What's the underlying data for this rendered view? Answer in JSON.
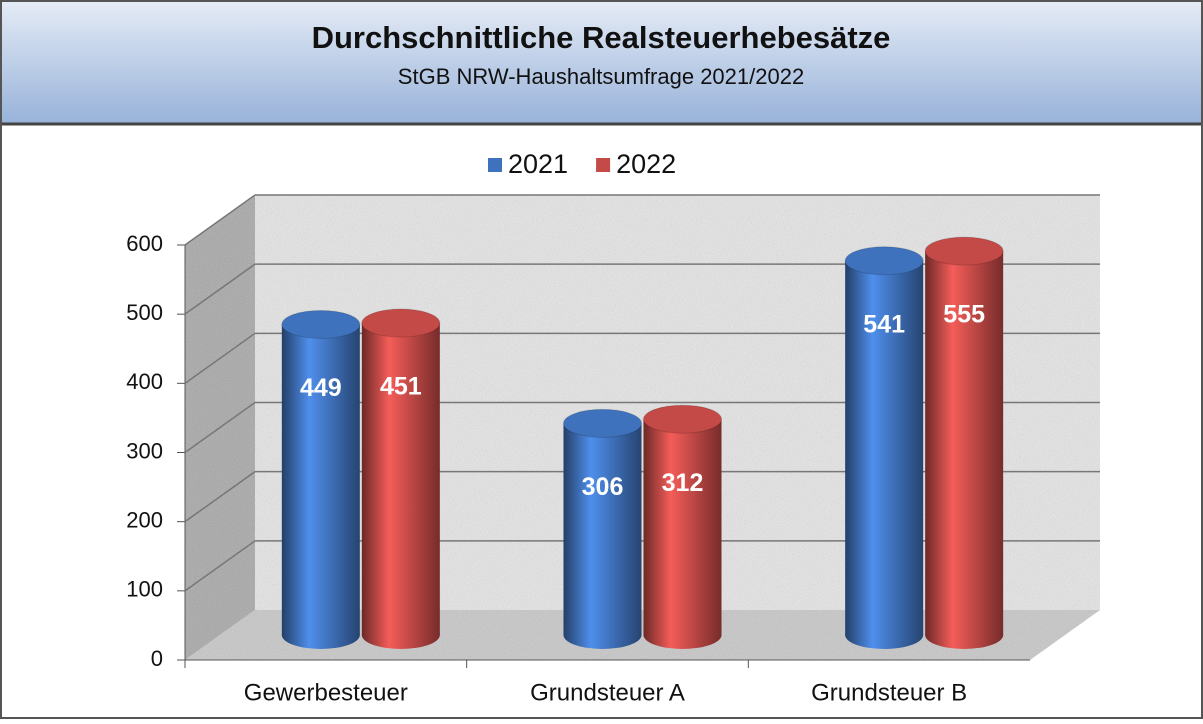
{
  "chart_data": {
    "type": "bar3d",
    "title": "Durchschnittliche Realsteuerhebesätze",
    "subtitle": "StGB NRW-Haushaltsumfrage 2021/2022",
    "categories": [
      "Gewerbesteuer",
      "Grundsteuer A",
      "Grundsteuer B"
    ],
    "series": [
      {
        "name": "2021",
        "color": "#3f72bd",
        "values": [
          449,
          306,
          541
        ]
      },
      {
        "name": "2022",
        "color": "#c44a47",
        "values": [
          451,
          312,
          555
        ]
      }
    ],
    "ylim": [
      0,
      600
    ],
    "yticks": [
      0,
      100,
      200,
      300,
      400,
      500,
      600
    ],
    "grid": true,
    "legend": "top"
  }
}
